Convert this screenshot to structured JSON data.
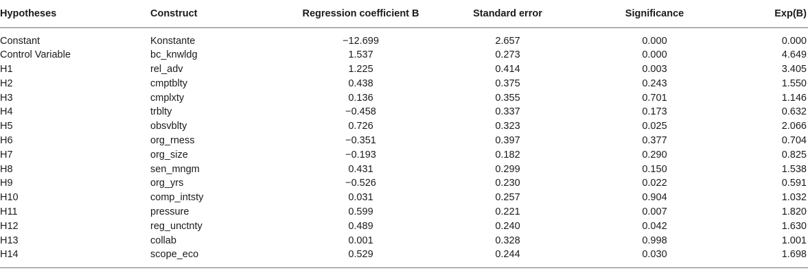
{
  "table": {
    "headers": {
      "hypotheses": "Hypotheses",
      "construct": "Construct",
      "regression": "Regression coefficient B",
      "std_error": "Standard error",
      "significance": "Significance",
      "exp_b": "Exp(B)"
    },
    "rows": [
      {
        "hypothesis": "Constant",
        "construct": "Konstante",
        "b": "−12.699",
        "se": "2.657",
        "sig": "0.000",
        "exp": "0.000"
      },
      {
        "hypothesis": "Control Variable",
        "construct": "bc_knwldg",
        "b": "1.537",
        "se": "0.273",
        "sig": "0.000",
        "exp": "4.649"
      },
      {
        "hypothesis": "H1",
        "construct": "rel_adv",
        "b": "1.225",
        "se": "0.414",
        "sig": "0.003",
        "exp": "3.405"
      },
      {
        "hypothesis": "H2",
        "construct": "cmptblty",
        "b": "0.438",
        "se": "0.375",
        "sig": "0.243",
        "exp": "1.550"
      },
      {
        "hypothesis": "H3",
        "construct": "cmplxty",
        "b": "0.136",
        "se": "0.355",
        "sig": "0.701",
        "exp": "1.146"
      },
      {
        "hypothesis": "H4",
        "construct": "trblty",
        "b": "−0.458",
        "se": "0.337",
        "sig": "0.173",
        "exp": "0.632"
      },
      {
        "hypothesis": "H5",
        "construct": "obsvblty",
        "b": "0.726",
        "se": "0.323",
        "sig": "0.025",
        "exp": "2.066"
      },
      {
        "hypothesis": "H6",
        "construct": "org_rness",
        "b": "−0.351",
        "se": "0.397",
        "sig": "0.377",
        "exp": "0.704"
      },
      {
        "hypothesis": "H7",
        "construct": "org_size",
        "b": "−0.193",
        "se": "0.182",
        "sig": "0.290",
        "exp": "0.825"
      },
      {
        "hypothesis": "H8",
        "construct": "sen_mngm",
        "b": "0.431",
        "se": "0.299",
        "sig": "0.150",
        "exp": "1.538"
      },
      {
        "hypothesis": "H9",
        "construct": "org_yrs",
        "b": "−0.526",
        "se": "0.230",
        "sig": "0.022",
        "exp": "0.591"
      },
      {
        "hypothesis": "H10",
        "construct": "comp_intsty",
        "b": "0.031",
        "se": "0.257",
        "sig": "0.904",
        "exp": "1.032"
      },
      {
        "hypothesis": "H11",
        "construct": "pressure",
        "b": "0.599",
        "se": "0.221",
        "sig": "0.007",
        "exp": "1.820"
      },
      {
        "hypothesis": "H12",
        "construct": "reg_unctnty",
        "b": "0.489",
        "se": "0.240",
        "sig": "0.042",
        "exp": "1.630"
      },
      {
        "hypothesis": "H13",
        "construct": "collab",
        "b": "0.001",
        "se": "0.328",
        "sig": "0.998",
        "exp": "1.001"
      },
      {
        "hypothesis": "H14",
        "construct": "scope_eco",
        "b": "0.529",
        "se": "0.244",
        "sig": "0.030",
        "exp": "1.698"
      }
    ]
  }
}
